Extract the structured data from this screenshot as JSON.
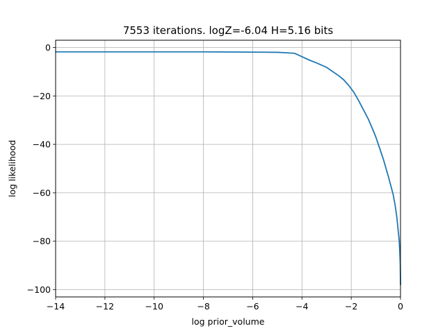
{
  "chart_data": {
    "type": "line",
    "title": "7553 iterations. logZ=-6.04 H=5.16 bits",
    "xlabel": "log prior_volume",
    "ylabel": "log likelihood",
    "xlim": [
      -14,
      0
    ],
    "ylim": [
      -103,
      3
    ],
    "grid": true,
    "line_color": "#1f77b4",
    "xticks": [
      {
        "value": -14,
        "label": "−14"
      },
      {
        "value": -12,
        "label": "−12"
      },
      {
        "value": -10,
        "label": "−10"
      },
      {
        "value": -8,
        "label": "−8"
      },
      {
        "value": -6,
        "label": "−6"
      },
      {
        "value": -4,
        "label": "−4"
      },
      {
        "value": -2,
        "label": "−2"
      },
      {
        "value": 0,
        "label": "0"
      }
    ],
    "yticks": [
      {
        "value": 0,
        "label": "0"
      },
      {
        "value": -20,
        "label": "−20"
      },
      {
        "value": -40,
        "label": "−40"
      },
      {
        "value": -60,
        "label": "−60"
      },
      {
        "value": -80,
        "label": "−80"
      },
      {
        "value": -100,
        "label": "−100"
      }
    ],
    "series": [
      {
        "x": [
          -14.0,
          -12.0,
          -10.0,
          -8.0,
          -6.0,
          -5.0,
          -4.6,
          -4.3,
          -4.0,
          -3.7,
          -3.4,
          -3.0,
          -2.8,
          -2.5,
          -2.3,
          -2.1,
          -1.9,
          -1.7,
          -1.5,
          -1.3,
          -1.2,
          -1.1,
          -1.0,
          -0.9,
          -0.8,
          -0.7,
          -0.6,
          -0.5,
          -0.4,
          -0.3,
          -0.22,
          -0.15,
          -0.1,
          -0.05,
          -0.03,
          -0.01,
          0.0
        ],
        "y": [
          -1.8,
          -1.8,
          -1.8,
          -1.8,
          -1.9,
          -2.0,
          -2.2,
          -2.4,
          -3.8,
          -5.2,
          -6.4,
          -8.2,
          -9.6,
          -11.7,
          -13.4,
          -15.7,
          -18.4,
          -21.9,
          -25.8,
          -29.7,
          -32.1,
          -34.5,
          -37.0,
          -40.0,
          -43.0,
          -46.0,
          -49.5,
          -53.0,
          -56.8,
          -60.6,
          -65.0,
          -70.0,
          -75.0,
          -80.0,
          -84.0,
          -89.0,
          -98.0
        ]
      }
    ]
  }
}
